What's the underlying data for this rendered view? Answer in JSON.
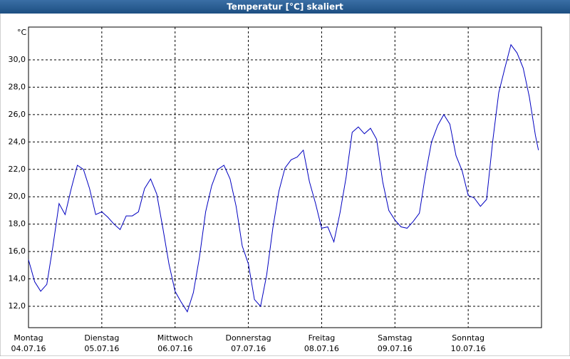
{
  "chart_data": {
    "type": "line",
    "title": "Temperatur [°C] skaliert",
    "y_label": "°C",
    "x": [
      0,
      2,
      4,
      6,
      8,
      10,
      12,
      14,
      16,
      18,
      20,
      22,
      24,
      26,
      28,
      30,
      32,
      34,
      36,
      38,
      40,
      42,
      44,
      46,
      48,
      50,
      52,
      54,
      56,
      58,
      60,
      62,
      64,
      66,
      68,
      70,
      72,
      74,
      76,
      78,
      80,
      82,
      84,
      86,
      88,
      90,
      92,
      94,
      96,
      98,
      100,
      102,
      104,
      106,
      108,
      110,
      112,
      114,
      116,
      118,
      120,
      122,
      124,
      126,
      128,
      130,
      132,
      134,
      136,
      138,
      140,
      142,
      144,
      146,
      148,
      150,
      152,
      154,
      156,
      158,
      160,
      162,
      164,
      166,
      167
    ],
    "series": [
      {
        "color": "#0000c0",
        "values": [
          15.4,
          13.8,
          13.1,
          13.6,
          16.4,
          19.5,
          18.7,
          20.6,
          22.3,
          22.0,
          20.6,
          18.7,
          18.9,
          18.5,
          18.0,
          17.6,
          18.6,
          18.6,
          18.9,
          20.6,
          21.3,
          20.2,
          17.7,
          15.1,
          13.1,
          12.3,
          11.6,
          13.0,
          15.6,
          18.9,
          20.8,
          22.0,
          22.3,
          21.3,
          19.3,
          16.4,
          15.1,
          12.5,
          12.0,
          14.3,
          17.7,
          20.4,
          22.1,
          22.7,
          22.9,
          23.4,
          21.1,
          19.5,
          17.7,
          17.8,
          16.7,
          18.8,
          21.4,
          24.7,
          25.1,
          24.6,
          25.0,
          24.2,
          21.1,
          19.0,
          18.3,
          17.8,
          17.7,
          18.2,
          18.8,
          21.6,
          24.0,
          25.2,
          26.0,
          25.3,
          23.0,
          21.9,
          20.1,
          19.9,
          19.3,
          19.8,
          24.0,
          27.6,
          29.4,
          31.1,
          30.5,
          29.4,
          27.3,
          24.5,
          23.4
        ]
      }
    ],
    "xlim": [
      0,
      168
    ],
    "xticks": [
      {
        "value": 0,
        "label": "Montag"
      },
      {
        "value": 24,
        "label": "Dienstag"
      },
      {
        "value": 48,
        "label": "Mittwoch"
      },
      {
        "value": 72,
        "label": "Donnerstag"
      },
      {
        "value": 96,
        "label": "Freitag"
      },
      {
        "value": 120,
        "label": "Samstag"
      },
      {
        "value": 144,
        "label": "Sonntag"
      }
    ],
    "xtick_dates": [
      "04.07.16",
      "05.07.16",
      "06.07.16",
      "07.07.16",
      "08.07.16",
      "09.07.16",
      "10.07.16"
    ],
    "ylim": [
      10.44,
      32.39
    ],
    "yticks": [
      {
        "value": 12,
        "label": "12,0"
      },
      {
        "value": 14,
        "label": "14,0"
      },
      {
        "value": 16,
        "label": "16,0"
      },
      {
        "value": 18,
        "label": "18,0"
      },
      {
        "value": 20,
        "label": "20,0"
      },
      {
        "value": 22,
        "label": "22,0"
      },
      {
        "value": 24,
        "label": "24,0"
      },
      {
        "value": 26,
        "label": "26,0"
      },
      {
        "value": 28,
        "label": "28,0"
      },
      {
        "value": 30,
        "label": "30,0"
      }
    ],
    "grid": true
  }
}
